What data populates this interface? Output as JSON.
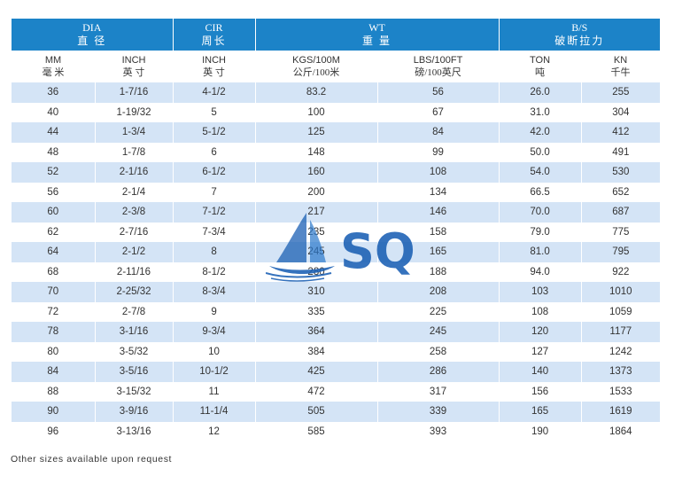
{
  "header_groups": [
    {
      "en": "DIA",
      "zh": "直 径"
    },
    {
      "en": "CIR",
      "zh": "周长"
    },
    {
      "en": "WT",
      "zh": "重 量"
    },
    {
      "en": "B/S",
      "zh": "破断拉力"
    }
  ],
  "subheaders": [
    {
      "en": "MM",
      "zh": "毫 米"
    },
    {
      "en": "INCH",
      "zh": "英 寸"
    },
    {
      "en": "INCH",
      "zh": "英 寸"
    },
    {
      "en": "KGS/100M",
      "zh": "公斤/100米"
    },
    {
      "en": "LBS/100FT",
      "zh": "磅/100英尺"
    },
    {
      "en": "TON",
      "zh": "吨"
    },
    {
      "en": "KN",
      "zh": "千牛"
    }
  ],
  "rows": [
    [
      "36",
      "1-7/16",
      "4-1/2",
      "83.2",
      "56",
      "26.0",
      "255"
    ],
    [
      "40",
      "1-19/32",
      "5",
      "100",
      "67",
      "31.0",
      "304"
    ],
    [
      "44",
      "1-3/4",
      "5-1/2",
      "125",
      "84",
      "42.0",
      "412"
    ],
    [
      "48",
      "1-7/8",
      "6",
      "148",
      "99",
      "50.0",
      "491"
    ],
    [
      "52",
      "2-1/16",
      "6-1/2",
      "160",
      "108",
      "54.0",
      "530"
    ],
    [
      "56",
      "2-1/4",
      "7",
      "200",
      "134",
      "66.5",
      "652"
    ],
    [
      "60",
      "2-3/8",
      "7-1/2",
      "217",
      "146",
      "70.0",
      "687"
    ],
    [
      "62",
      "2-7/16",
      "7-3/4",
      "235",
      "158",
      "79.0",
      "775"
    ],
    [
      "64",
      "2-1/2",
      "8",
      "245",
      "165",
      "81.0",
      "795"
    ],
    [
      "68",
      "2-11/16",
      "8-1/2",
      "280",
      "188",
      "94.0",
      "922"
    ],
    [
      "70",
      "2-25/32",
      "8-3/4",
      "310",
      "208",
      "103",
      "1010"
    ],
    [
      "72",
      "2-7/8",
      "9",
      "335",
      "225",
      "108",
      "1059"
    ],
    [
      "78",
      "3-1/16",
      "9-3/4",
      "364",
      "245",
      "120",
      "1177"
    ],
    [
      "80",
      "3-5/32",
      "10",
      "384",
      "258",
      "127",
      "1242"
    ],
    [
      "84",
      "3-5/16",
      "10-1/2",
      "425",
      "286",
      "140",
      "1373"
    ],
    [
      "88",
      "3-15/32",
      "11",
      "472",
      "317",
      "156",
      "1533"
    ],
    [
      "90",
      "3-9/16",
      "11-1/4",
      "505",
      "339",
      "165",
      "1619"
    ],
    [
      "96",
      "3-13/16",
      "12",
      "585",
      "393",
      "190",
      "1864"
    ]
  ],
  "note": "Other sizes available upon request",
  "logo": {
    "text": "SQ",
    "icon": "sailboat-icon",
    "color": "#1a5fb4"
  },
  "colors": {
    "header": "#1c83c8",
    "stripe": "#d4e4f6"
  }
}
